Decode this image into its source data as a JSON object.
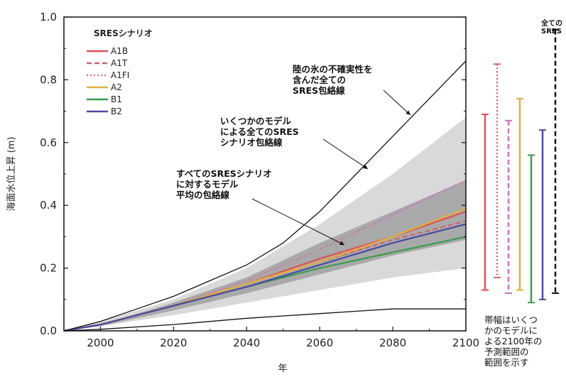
{
  "chart_data": {
    "type": "line",
    "xlabel": "年",
    "ylabel": "海面水位上昇 (m)",
    "xlim": [
      1990,
      2100
    ],
    "ylim": [
      0,
      1.0
    ],
    "x_ticks": [
      2000,
      2020,
      2040,
      2060,
      2080,
      2100
    ],
    "y_ticks": [
      0.0,
      0.2,
      0.4,
      0.6,
      0.8,
      1.0
    ],
    "x_tick_labels": [
      "2000",
      "2020",
      "2040",
      "2060",
      "2080",
      "2100"
    ],
    "y_tick_labels": [
      "0.0",
      "0.2",
      "0.4",
      "0.6",
      "0.8",
      "1.0"
    ],
    "legend": {
      "title": "SRESシナリオ",
      "placement": "top-left"
    },
    "series": [
      {
        "name": "A1B",
        "color": "#e0505a",
        "dash": "solid",
        "x": [
          1990,
          2000,
          2020,
          2040,
          2060,
          2080,
          2100
        ],
        "y": [
          0.0,
          0.02,
          0.08,
          0.15,
          0.23,
          0.3,
          0.38
        ]
      },
      {
        "name": "A1T",
        "color": "#d06070",
        "dash": "dashed",
        "x": [
          1990,
          2000,
          2020,
          2040,
          2060,
          2080,
          2100
        ],
        "y": [
          0.0,
          0.02,
          0.08,
          0.15,
          0.22,
          0.29,
          0.35
        ]
      },
      {
        "name": "A1FI",
        "color": "#d070b0",
        "dash": "dotted",
        "x": [
          1990,
          2000,
          2020,
          2040,
          2060,
          2080,
          2100
        ],
        "y": [
          0.0,
          0.02,
          0.08,
          0.16,
          0.26,
          0.37,
          0.48
        ]
      },
      {
        "name": "A2",
        "color": "#e0b040",
        "dash": "solid",
        "x": [
          1990,
          2000,
          2020,
          2040,
          2060,
          2080,
          2100
        ],
        "y": [
          0.0,
          0.02,
          0.08,
          0.15,
          0.22,
          0.3,
          0.39
        ]
      },
      {
        "name": "B1",
        "color": "#3f9a50",
        "dash": "solid",
        "x": [
          1990,
          2000,
          2020,
          2040,
          2060,
          2080,
          2100
        ],
        "y": [
          0.0,
          0.02,
          0.08,
          0.14,
          0.2,
          0.25,
          0.3
        ]
      },
      {
        "name": "B2",
        "color": "#4a4aa0",
        "dash": "solid",
        "x": [
          1990,
          2000,
          2020,
          2040,
          2060,
          2080,
          2100
        ],
        "y": [
          0.0,
          0.02,
          0.08,
          0.14,
          0.21,
          0.28,
          0.34
        ]
      }
    ],
    "envelopes": {
      "ice_upper": {
        "x": [
          1990,
          2000,
          2010,
          2020,
          2030,
          2040,
          2050,
          2060,
          2070,
          2080,
          2090,
          2100
        ],
        "y": [
          0.0,
          0.03,
          0.07,
          0.11,
          0.16,
          0.21,
          0.28,
          0.38,
          0.5,
          0.62,
          0.74,
          0.86
        ]
      },
      "ice_lower": {
        "x": [
          1990,
          2000,
          2020,
          2040,
          2060,
          2080,
          2100
        ],
        "y": [
          0.0,
          0.005,
          0.02,
          0.04,
          0.055,
          0.07,
          0.07
        ]
      },
      "models_upper": {
        "x": [
          1990,
          2000,
          2020,
          2040,
          2060,
          2080,
          2100
        ],
        "y": [
          0.0,
          0.03,
          0.1,
          0.2,
          0.34,
          0.5,
          0.68
        ]
      },
      "models_lower": {
        "x": [
          1990,
          2000,
          2020,
          2040,
          2060,
          2080,
          2100
        ],
        "y": [
          0.0,
          0.015,
          0.05,
          0.09,
          0.13,
          0.17,
          0.2
        ]
      },
      "mean_upper": {
        "x": [
          1990,
          2000,
          2020,
          2040,
          2060,
          2080,
          2100
        ],
        "y": [
          0.0,
          0.02,
          0.09,
          0.17,
          0.28,
          0.38,
          0.48
        ]
      },
      "mean_lower": {
        "x": [
          1990,
          2000,
          2020,
          2040,
          2060,
          2080,
          2100
        ],
        "y": [
          0.0,
          0.015,
          0.065,
          0.12,
          0.18,
          0.24,
          0.29
        ]
      }
    },
    "range_bars_2100": [
      {
        "name": "A1B",
        "color": "#e0505a",
        "dash": "solid",
        "low": 0.13,
        "high": 0.69
      },
      {
        "name": "A1T",
        "color": "#d06070",
        "dash": "dotted",
        "low": 0.17,
        "high": 0.85
      },
      {
        "name": "A1FI",
        "color": "#d070b0",
        "dash": "dashed",
        "low": 0.12,
        "high": 0.67
      },
      {
        "name": "A2",
        "color": "#e0b040",
        "dash": "solid",
        "low": 0.13,
        "high": 0.74
      },
      {
        "name": "B1",
        "color": "#3f9a50",
        "dash": "solid",
        "low": 0.09,
        "high": 0.56
      },
      {
        "name": "B2",
        "color": "#4a4aa0",
        "dash": "solid",
        "low": 0.1,
        "high": 0.64
      },
      {
        "name": "全ての",
        "color": "#111111",
        "dash": "dashed",
        "low": 0.12,
        "high": 0.96
      }
    ],
    "annotations": {
      "ice": [
        "陸の氷の不確実性を",
        "含んだ全ての",
        "SRES包絡線"
      ],
      "models": [
        "いくつかのモデル",
        "による全てのSRES",
        "シナリオ包絡線"
      ],
      "mean": [
        "すべてのSRESシナリオ",
        "に対するモデル",
        "平均の包絡線"
      ],
      "bars": [
        "帯幅はいくつ",
        "かのモデルに",
        "よる2100年の",
        "予測範囲の",
        "範囲を示す"
      ],
      "all_label": [
        "全ての",
        "SRES"
      ]
    }
  },
  "colors": {
    "models_fill": "#d9d9d9",
    "mean_fill": "#a9a9a9",
    "axis": "#111111"
  }
}
